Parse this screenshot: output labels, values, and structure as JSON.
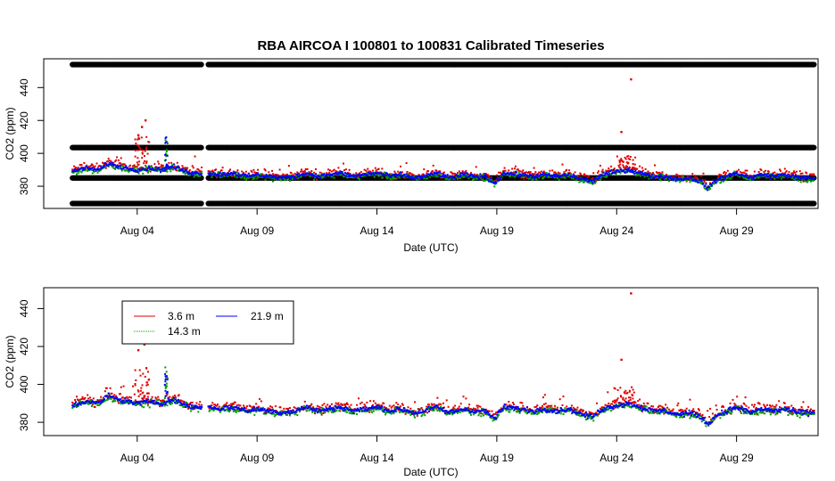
{
  "chart_data": [
    {
      "type": "scatter",
      "title": "RBA   AIRCOA  I    100801  to  100831   Calibrated Timeseries",
      "xlabel": "Date (UTC)",
      "ylabel": "CO2 (ppm)",
      "x_tick_labels": [
        "Aug 04",
        "Aug 09",
        "Aug 14",
        "Aug 19",
        "Aug 24",
        "Aug 29"
      ],
      "x_tick_values": [
        4,
        9,
        14,
        19,
        24,
        29
      ],
      "xlim": [
        0.1,
        32.4
      ],
      "y_tick_labels": [
        "380",
        "400",
        "420",
        "440"
      ],
      "y_tick_values": [
        380,
        400,
        420,
        440
      ],
      "ylim": [
        366.5,
        457.5
      ],
      "grid": false,
      "calibration_levels": [
        369.5,
        385,
        403.5,
        454
      ],
      "calibration_color": "#000000",
      "series": [
        {
          "color": "#e00000",
          "approx_baseline_ppm": [
            [
              1.3,
              389
            ],
            [
              2,
              391
            ],
            [
              3,
              394
            ],
            [
              4,
              392
            ],
            [
              5,
              391
            ],
            [
              6,
              390
            ],
            [
              7,
              388
            ],
            [
              9,
              386
            ],
            [
              11,
              386
            ],
            [
              13,
              388
            ],
            [
              15,
              387
            ],
            [
              17,
              387
            ],
            [
              18.5,
              386
            ],
            [
              19,
              381
            ],
            [
              20,
              387
            ],
            [
              22,
              387
            ],
            [
              23,
              384
            ],
            [
              24,
              392
            ],
            [
              25,
              390
            ],
            [
              26,
              386
            ],
            [
              27,
              385
            ],
            [
              27.8,
              380
            ],
            [
              29,
              387
            ],
            [
              31,
              386
            ],
            [
              32.2,
              385
            ]
          ],
          "outliers_ppm": [
            [
              4.05,
              411
            ],
            [
              4.2,
              416
            ],
            [
              4.35,
              420
            ],
            [
              24.2,
              413
            ],
            [
              24.6,
              445
            ]
          ]
        },
        {
          "color": "#00a000",
          "approx_baseline_ppm": [
            [
              1.3,
              389
            ],
            [
              2,
              390
            ],
            [
              3,
              393
            ],
            [
              4,
              391
            ],
            [
              5,
              390
            ],
            [
              5.2,
              410
            ],
            [
              6,
              389
            ],
            [
              9,
              386
            ],
            [
              14,
              388
            ],
            [
              19,
              382
            ],
            [
              23,
              383
            ],
            [
              24,
              389
            ],
            [
              27.8,
              377
            ],
            [
              32.2,
              385
            ]
          ]
        },
        {
          "color": "#0000ff",
          "approx_baseline_ppm": [
            [
              1.3,
              389
            ],
            [
              2,
              390
            ],
            [
              3,
              391
            ],
            [
              4,
              390
            ],
            [
              5,
              389
            ],
            [
              5.2,
              405
            ],
            [
              6,
              389
            ],
            [
              9,
              386
            ],
            [
              14,
              388
            ],
            [
              19,
              385
            ],
            [
              23,
              385
            ],
            [
              24,
              389
            ],
            [
              27.8,
              380
            ],
            [
              32.2,
              385
            ]
          ]
        }
      ]
    },
    {
      "type": "scatter",
      "xlabel": "Date (UTC)",
      "ylabel": "CO2 (ppm)",
      "x_tick_labels": [
        "Aug 04",
        "Aug 09",
        "Aug 14",
        "Aug 19",
        "Aug 24",
        "Aug 29"
      ],
      "x_tick_values": [
        4,
        9,
        14,
        19,
        24,
        29
      ],
      "xlim": [
        0.1,
        32.4
      ],
      "y_tick_labels": [
        "380",
        "400",
        "420",
        "440"
      ],
      "y_tick_values": [
        380,
        400,
        420,
        440
      ],
      "ylim": [
        373,
        451
      ],
      "grid": false,
      "legend": {
        "position": "top-left",
        "entries": [
          {
            "label": "3.6 m",
            "color": "#e00000"
          },
          {
            "label": "14.3 m",
            "color": "#00a000"
          },
          {
            "label": "21.9 m",
            "color": "#0000ff"
          }
        ]
      },
      "series": [
        {
          "name": "3.6 m",
          "color": "#e00000",
          "outliers_ppm": [
            [
              4.05,
              418
            ],
            [
              4.3,
              421
            ],
            [
              24.2,
              413
            ],
            [
              24.6,
              448
            ]
          ]
        },
        {
          "name": "14.3 m",
          "color": "#00a000"
        },
        {
          "name": "21.9 m",
          "color": "#0000ff"
        }
      ]
    }
  ]
}
